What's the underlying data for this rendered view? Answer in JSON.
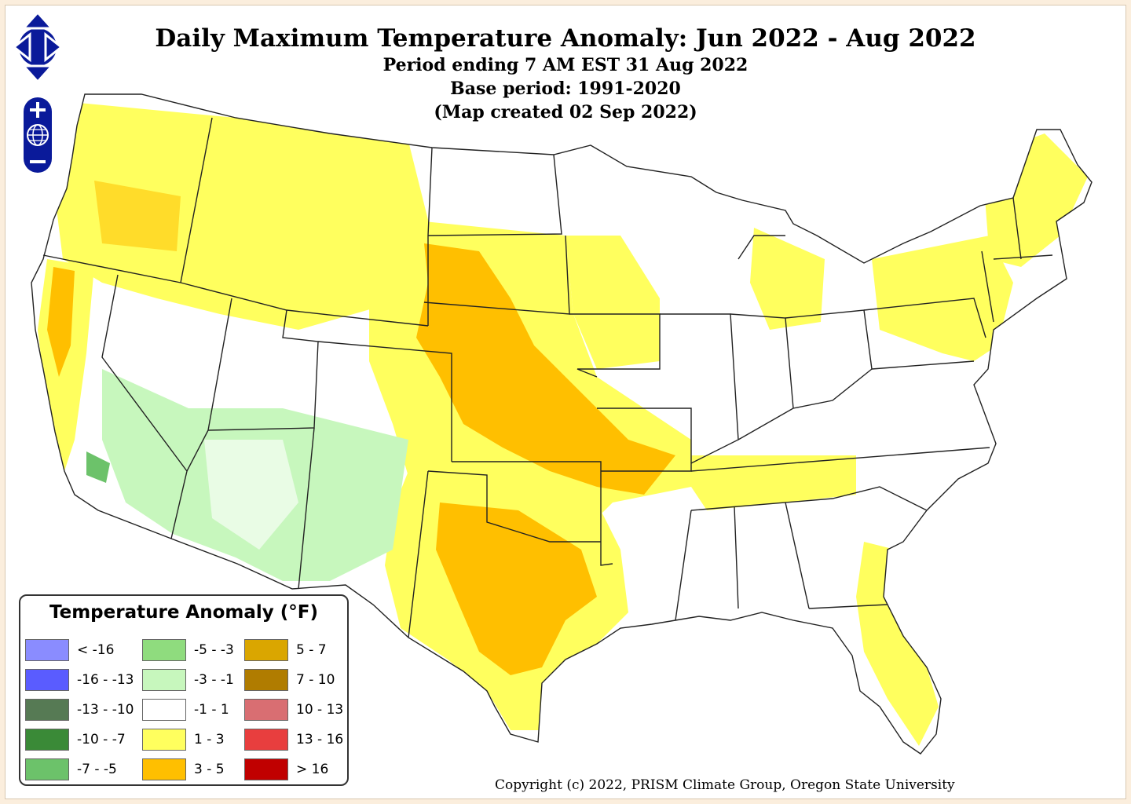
{
  "map": {
    "title": "Daily Maximum Temperature Anomaly: Jun 2022 - Aug 2022",
    "period_line": "Period ending 7 AM EST 31 Aug 2022",
    "base_line": "Base period: 1991-2020",
    "created_line": "(Map created 02 Sep 2022)",
    "region": "Contiguous United States",
    "colors": {
      "background": "#fbeedd",
      "state_lines": "#222222",
      "control_blue": "#0a1a9a"
    }
  },
  "controls": {
    "pan_icons": [
      "pan-up-icon",
      "pan-left-icon",
      "pan-right-icon",
      "pan-down-icon"
    ],
    "zoom_icons": [
      "zoom-in-icon",
      "globe-icon",
      "zoom-out-icon"
    ]
  },
  "legend": {
    "title": "Temperature Anomaly (°F)",
    "items": [
      {
        "label": "< -16",
        "color": "#8a8cff"
      },
      {
        "label": "-16 - -13",
        "color": "#5a5cff"
      },
      {
        "label": "-13 - -10",
        "color": "#567a54"
      },
      {
        "label": "-10 - -7",
        "color": "#3a8a37"
      },
      {
        "label": "-7 - -5",
        "color": "#6cc26a"
      },
      {
        "label": "-5 - -3",
        "color": "#8fdc7e"
      },
      {
        "label": "-3 - -1",
        "color": "#c7f7bd"
      },
      {
        "label": "-1 - 1",
        "color": "#ffffff"
      },
      {
        "label": "1 - 3",
        "color": "#ffff5e"
      },
      {
        "label": "3 - 5",
        "color": "#ffbf00"
      },
      {
        "label": "5 - 7",
        "color": "#daa600"
      },
      {
        "label": "7 - 10",
        "color": "#b07c00"
      },
      {
        "label": "10 - 13",
        "color": "#d96e72"
      },
      {
        "label": "13 - 16",
        "color": "#e83e3e"
      },
      {
        "label": "> 16",
        "color": "#c00000"
      }
    ]
  },
  "copyright": "Copyright (c) 2022, PRISM Climate Group, Oregon State University"
}
